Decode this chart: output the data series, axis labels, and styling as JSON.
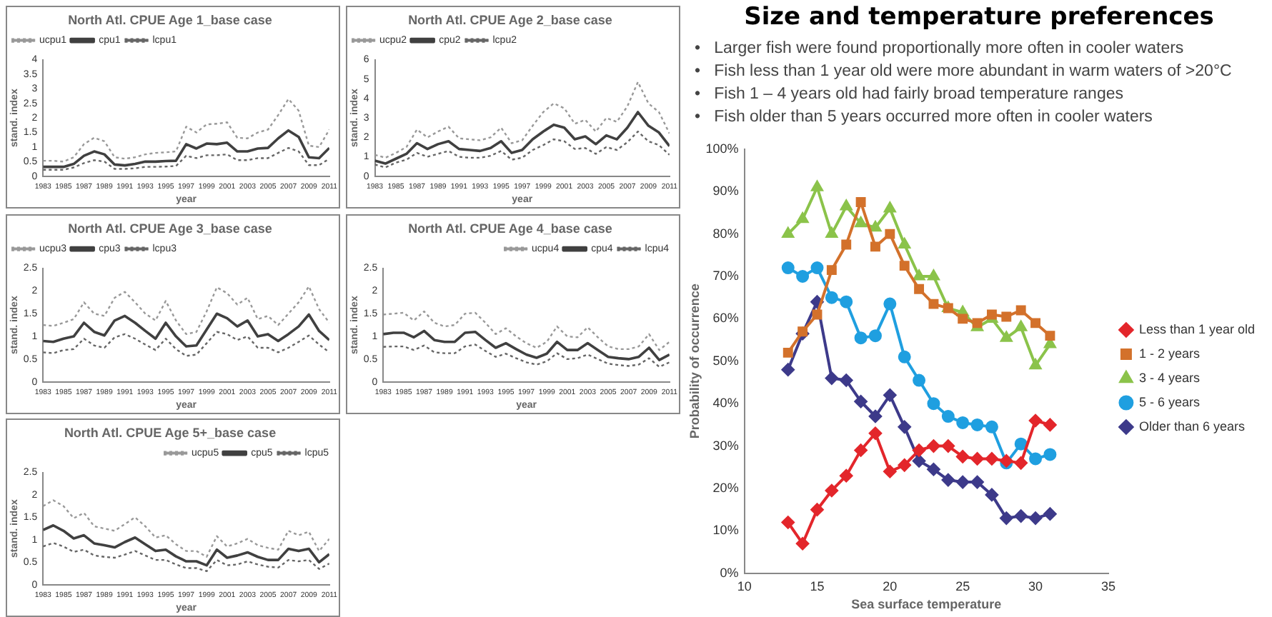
{
  "chart_data": [
    {
      "type": "line",
      "title": "North Atl. CPUE Age 1_base case",
      "xlabel": "year",
      "ylabel": "stand. index",
      "legend": "top left",
      "x": [
        1983,
        1984,
        1985,
        1986,
        1987,
        1988,
        1989,
        1990,
        1991,
        1992,
        1993,
        1994,
        1995,
        1996,
        1997,
        1998,
        1999,
        2000,
        2001,
        2002,
        2003,
        2004,
        2005,
        2006,
        2007,
        2008,
        2009,
        2010,
        2011
      ],
      "xlim": [
        1983,
        2011
      ],
      "xticks": [
        1983,
        1985,
        1987,
        1989,
        1991,
        1993,
        1995,
        1997,
        1999,
        2001,
        2003,
        2005,
        2007,
        2009,
        2011
      ],
      "ylim": [
        0,
        4
      ],
      "yticks": [
        0,
        0.5,
        1,
        1.5,
        2,
        2.5,
        3,
        3.5,
        4
      ],
      "marker": "none",
      "series": [
        {
          "name": "ucpu1",
          "color": "#999999",
          "line_style": "dotted",
          "values": [
            0.53,
            0.53,
            0.5,
            0.65,
            1.1,
            1.32,
            1.2,
            0.65,
            0.6,
            0.65,
            0.75,
            0.8,
            0.82,
            0.85,
            1.7,
            1.5,
            1.78,
            1.8,
            1.85,
            1.32,
            1.3,
            1.5,
            1.6,
            2.1,
            2.65,
            2.25,
            1.05,
            1.0,
            1.6
          ]
        },
        {
          "name": "cpu1",
          "color": "#404040",
          "line_style": "solid",
          "values": [
            0.32,
            0.32,
            0.32,
            0.42,
            0.7,
            0.85,
            0.75,
            0.4,
            0.37,
            0.42,
            0.5,
            0.5,
            0.52,
            0.53,
            1.1,
            0.95,
            1.12,
            1.1,
            1.15,
            0.85,
            0.85,
            0.95,
            0.97,
            1.3,
            1.57,
            1.35,
            0.65,
            0.62,
            0.97
          ]
        },
        {
          "name": "lcpu1",
          "color": "#666666",
          "line_style": "dotted",
          "values": [
            0.22,
            0.22,
            0.22,
            0.3,
            0.45,
            0.55,
            0.5,
            0.25,
            0.25,
            0.27,
            0.32,
            0.32,
            0.33,
            0.35,
            0.7,
            0.62,
            0.72,
            0.72,
            0.75,
            0.55,
            0.55,
            0.62,
            0.62,
            0.8,
            0.97,
            0.85,
            0.38,
            0.38,
            0.6
          ]
        }
      ]
    },
    {
      "type": "line",
      "title": "North Atl. CPUE Age 2_base case",
      "xlabel": "year",
      "ylabel": "stand. index",
      "legend": "top left",
      "x": [
        1983,
        1984,
        1985,
        1986,
        1987,
        1988,
        1989,
        1990,
        1991,
        1992,
        1993,
        1994,
        1995,
        1996,
        1997,
        1998,
        1999,
        2000,
        2001,
        2002,
        2003,
        2004,
        2005,
        2006,
        2007,
        2008,
        2009,
        2010,
        2011
      ],
      "xlim": [
        1983,
        2011
      ],
      "xticks": [
        1983,
        1985,
        1987,
        1989,
        1991,
        1993,
        1995,
        1997,
        1999,
        2001,
        2003,
        2005,
        2007,
        2009,
        2011
      ],
      "ylim": [
        0,
        6
      ],
      "yticks": [
        0,
        1,
        2,
        3,
        4,
        5,
        6
      ],
      "marker": "none",
      "series": [
        {
          "name": "ucpu2",
          "color": "#999999",
          "line_style": "dotted",
          "values": [
            1.1,
            0.95,
            1.2,
            1.5,
            2.4,
            2.0,
            2.3,
            2.55,
            1.95,
            1.9,
            1.85,
            2.0,
            2.5,
            1.7,
            1.85,
            2.6,
            3.3,
            3.75,
            3.5,
            2.7,
            2.9,
            2.3,
            3.0,
            2.8,
            3.6,
            4.85,
            3.75,
            3.3,
            2.2
          ]
        },
        {
          "name": "cpu2",
          "color": "#404040",
          "line_style": "solid",
          "values": [
            0.8,
            0.65,
            0.9,
            1.15,
            1.7,
            1.4,
            1.65,
            1.8,
            1.4,
            1.35,
            1.3,
            1.45,
            1.8,
            1.2,
            1.35,
            1.9,
            2.3,
            2.65,
            2.5,
            1.9,
            2.05,
            1.65,
            2.1,
            1.9,
            2.5,
            3.3,
            2.6,
            2.25,
            1.55
          ]
        },
        {
          "name": "lcpu2",
          "color": "#666666",
          "line_style": "dotted",
          "values": [
            0.6,
            0.45,
            0.7,
            0.85,
            1.2,
            1.0,
            1.15,
            1.3,
            1.0,
            0.95,
            0.95,
            1.05,
            1.3,
            0.85,
            0.95,
            1.35,
            1.6,
            1.9,
            1.8,
            1.4,
            1.45,
            1.15,
            1.5,
            1.35,
            1.75,
            2.3,
            1.8,
            1.6,
            1.1
          ]
        }
      ]
    },
    {
      "type": "line",
      "title": "North Atl. CPUE Age 3_base case",
      "xlabel": "year",
      "ylabel": "stand. index",
      "legend": "top left",
      "x": [
        1983,
        1984,
        1985,
        1986,
        1987,
        1988,
        1989,
        1990,
        1991,
        1992,
        1993,
        1994,
        1995,
        1996,
        1997,
        1998,
        1999,
        2000,
        2001,
        2002,
        2003,
        2004,
        2005,
        2006,
        2007,
        2008,
        2009,
        2010,
        2011
      ],
      "xlim": [
        1983,
        2011
      ],
      "xticks": [
        1983,
        1985,
        1987,
        1989,
        1991,
        1993,
        1995,
        1997,
        1999,
        2001,
        2003,
        2005,
        2007,
        2009,
        2011
      ],
      "ylim": [
        0,
        2.5
      ],
      "yticks": [
        0,
        0.5,
        1,
        1.5,
        2,
        2.5
      ],
      "marker": "none",
      "series": [
        {
          "name": "ucpu3",
          "color": "#999999",
          "line_style": "dotted",
          "values": [
            1.25,
            1.23,
            1.3,
            1.38,
            1.75,
            1.5,
            1.45,
            1.85,
            1.98,
            1.75,
            1.5,
            1.35,
            1.78,
            1.35,
            1.05,
            1.1,
            1.55,
            2.08,
            1.95,
            1.7,
            1.85,
            1.38,
            1.45,
            1.25,
            1.5,
            1.75,
            2.1,
            1.6,
            1.3
          ]
        },
        {
          "name": "cpu3",
          "color": "#404040",
          "line_style": "solid",
          "values": [
            0.9,
            0.88,
            0.95,
            1.0,
            1.3,
            1.1,
            1.02,
            1.35,
            1.45,
            1.3,
            1.12,
            0.95,
            1.3,
            1.0,
            0.78,
            0.8,
            1.15,
            1.5,
            1.4,
            1.22,
            1.35,
            1.0,
            1.05,
            0.9,
            1.05,
            1.22,
            1.48,
            1.12,
            0.92
          ]
        },
        {
          "name": "lcpu3",
          "color": "#666666",
          "line_style": "dotted",
          "values": [
            0.65,
            0.63,
            0.7,
            0.72,
            0.95,
            0.8,
            0.75,
            0.98,
            1.05,
            0.95,
            0.82,
            0.7,
            0.95,
            0.72,
            0.57,
            0.6,
            0.85,
            1.1,
            1.05,
            0.92,
            1.0,
            0.75,
            0.75,
            0.65,
            0.75,
            0.88,
            1.02,
            0.82,
            0.65
          ]
        }
      ]
    },
    {
      "type": "line",
      "title": "North Atl. CPUE Age 4_base case",
      "xlabel": "year",
      "ylabel": "stand. index",
      "legend": "top right",
      "x": [
        1983,
        1984,
        1985,
        1986,
        1987,
        1988,
        1989,
        1990,
        1991,
        1992,
        1993,
        1994,
        1995,
        1996,
        1997,
        1998,
        1999,
        2000,
        2001,
        2002,
        2003,
        2004,
        2005,
        2006,
        2007,
        2008,
        2009,
        2010,
        2011
      ],
      "xlim": [
        1983,
        2011
      ],
      "xticks": [
        1983,
        1985,
        1987,
        1989,
        1991,
        1993,
        1995,
        1997,
        1999,
        2001,
        2003,
        2005,
        2007,
        2009,
        2011
      ],
      "ylim": [
        0,
        2.5
      ],
      "yticks": [
        0,
        0.5,
        1,
        1.5,
        2,
        2.5
      ],
      "marker": "none",
      "series": [
        {
          "name": "ucpu4",
          "color": "#999999",
          "line_style": "dotted",
          "values": [
            1.48,
            1.5,
            1.52,
            1.35,
            1.55,
            1.3,
            1.22,
            1.25,
            1.5,
            1.52,
            1.3,
            1.05,
            1.18,
            1.0,
            0.85,
            0.75,
            0.88,
            1.22,
            1.0,
            0.98,
            1.2,
            0.98,
            0.78,
            0.72,
            0.72,
            0.78,
            1.05,
            0.7,
            0.88
          ]
        },
        {
          "name": "cpu4",
          "color": "#404040",
          "line_style": "solid",
          "values": [
            1.05,
            1.08,
            1.08,
            0.98,
            1.12,
            0.92,
            0.88,
            0.88,
            1.08,
            1.1,
            0.92,
            0.75,
            0.85,
            0.72,
            0.6,
            0.53,
            0.62,
            0.88,
            0.7,
            0.7,
            0.85,
            0.7,
            0.55,
            0.52,
            0.5,
            0.55,
            0.75,
            0.48,
            0.6
          ]
        },
        {
          "name": "lcpu4",
          "color": "#666666",
          "line_style": "dotted",
          "values": [
            0.77,
            0.78,
            0.78,
            0.7,
            0.8,
            0.65,
            0.63,
            0.63,
            0.78,
            0.82,
            0.68,
            0.55,
            0.62,
            0.52,
            0.43,
            0.38,
            0.45,
            0.63,
            0.5,
            0.52,
            0.6,
            0.5,
            0.4,
            0.37,
            0.35,
            0.38,
            0.52,
            0.33,
            0.43
          ]
        }
      ]
    },
    {
      "type": "line",
      "title": "North Atl. CPUE Age 5+_base case",
      "xlabel": "year",
      "ylabel": "stand. index",
      "legend": "top right",
      "x": [
        1983,
        1984,
        1985,
        1986,
        1987,
        1988,
        1989,
        1990,
        1991,
        1992,
        1993,
        1994,
        1995,
        1996,
        1997,
        1998,
        1999,
        2000,
        2001,
        2002,
        2003,
        2004,
        2005,
        2006,
        2007,
        2008,
        2009,
        2010,
        2011
      ],
      "xlim": [
        1983,
        2011
      ],
      "xticks": [
        1983,
        1985,
        1987,
        1989,
        1991,
        1993,
        1995,
        1997,
        1999,
        2001,
        2003,
        2005,
        2007,
        2009,
        2011
      ],
      "ylim": [
        0,
        2.5
      ],
      "yticks": [
        0,
        0.5,
        1,
        1.5,
        2,
        2.5
      ],
      "marker": "none",
      "series": [
        {
          "name": "ucpu5",
          "color": "#999999",
          "line_style": "dotted",
          "values": [
            1.75,
            1.88,
            1.75,
            1.48,
            1.6,
            1.3,
            1.25,
            1.2,
            1.35,
            1.5,
            1.3,
            1.05,
            1.1,
            0.9,
            0.75,
            0.75,
            0.62,
            1.08,
            0.85,
            0.92,
            1.02,
            0.88,
            0.82,
            0.78,
            1.2,
            1.1,
            1.18,
            0.75,
            1.02
          ]
        },
        {
          "name": "cpu5",
          "color": "#404040",
          "line_style": "solid",
          "values": [
            1.22,
            1.32,
            1.2,
            1.03,
            1.1,
            0.92,
            0.88,
            0.83,
            0.95,
            1.05,
            0.9,
            0.75,
            0.78,
            0.63,
            0.52,
            0.52,
            0.43,
            0.78,
            0.6,
            0.65,
            0.72,
            0.62,
            0.55,
            0.55,
            0.8,
            0.75,
            0.8,
            0.5,
            0.68
          ]
        },
        {
          "name": "lcpu5",
          "color": "#666666",
          "line_style": "dotted",
          "values": [
            0.85,
            0.93,
            0.85,
            0.73,
            0.78,
            0.65,
            0.62,
            0.6,
            0.67,
            0.75,
            0.65,
            0.55,
            0.55,
            0.45,
            0.37,
            0.37,
            0.3,
            0.55,
            0.43,
            0.45,
            0.52,
            0.45,
            0.4,
            0.38,
            0.55,
            0.52,
            0.55,
            0.35,
            0.47
          ]
        }
      ]
    },
    {
      "type": "other",
      "title": "Size and temperature preferences",
      "annotations": [
        "•   Larger fish were found proportionally more often in cooler waters",
        "•   Fish less than 1 year old were more abundant in warm waters of >20°C",
        "•   Fish 1 – 4 years old had fairly broad temperature ranges",
        "•   Fish older than 5 years occurred more often in cooler waters"
      ]
    },
    {
      "type": "line",
      "xlabel": "Sea surface temperature",
      "ylabel": "Probability of occurrence",
      "legend": "right",
      "x": [
        13,
        14,
        15,
        16,
        17,
        18,
        19,
        20,
        21,
        22,
        23,
        24,
        25,
        26,
        27,
        28,
        29,
        30,
        31
      ],
      "xlim": [
        10,
        35
      ],
      "xticks": [
        10,
        15,
        20,
        25,
        30,
        35
      ],
      "ylim": [
        0,
        100
      ],
      "yticks": [
        {
          "value": 0,
          "label": "0%"
        },
        {
          "value": 10,
          "label": "10%"
        },
        {
          "value": 20,
          "label": "20%"
        },
        {
          "value": 30,
          "label": "30%"
        },
        {
          "value": 40,
          "label": "40%"
        },
        {
          "value": 50,
          "label": "50%"
        },
        {
          "value": 60,
          "label": "60%"
        },
        {
          "value": 70,
          "label": "70%"
        },
        {
          "value": 80,
          "label": "80%"
        },
        {
          "value": 90,
          "label": "90%"
        },
        {
          "value": 100,
          "label": "100%"
        }
      ],
      "line_style": "solid",
      "series": [
        {
          "name": "Less than 1 year old",
          "color": "#e3262b",
          "marker": "diamond",
          "values": [
            12,
            7,
            15,
            19.5,
            23,
            29,
            33,
            24,
            25.5,
            29,
            30,
            30,
            27.5,
            27,
            27,
            26.5,
            26,
            36,
            35
          ]
        },
        {
          "name": "1 - 2 years",
          "color": "#d3712b",
          "marker": "square",
          "values": [
            52,
            57,
            61,
            71.5,
            77.5,
            87.5,
            77,
            80,
            72.5,
            67,
            63.5,
            62.5,
            60,
            59,
            61,
            60.5,
            62,
            59,
            56
          ]
        },
        {
          "name": "3 - 4 years",
          "color": "#8bc34a",
          "marker": "triangle",
          "values": [
            80,
            83.5,
            91,
            80,
            86.5,
            82.5,
            81.5,
            86,
            77.5,
            70,
            70,
            62.5,
            61.5,
            58,
            60,
            55.5,
            58,
            49,
            54
          ]
        },
        {
          "name": "5 - 6 years",
          "color": "#1f9fe0",
          "marker": "circle",
          "values": [
            72,
            70,
            72,
            65,
            64,
            55.5,
            56,
            63.5,
            51,
            45.5,
            40,
            37,
            35.5,
            35,
            34.5,
            26,
            30.5,
            27,
            28
          ]
        },
        {
          "name": "Older than 6 years",
          "color": "#3d3a8a",
          "marker": "diamond",
          "values": [
            48,
            56.5,
            64,
            46,
            45.5,
            40.5,
            37,
            42,
            34.5,
            26.5,
            24.5,
            22,
            21.5,
            21.5,
            18.5,
            13,
            13.5,
            13,
            14
          ]
        }
      ]
    }
  ]
}
